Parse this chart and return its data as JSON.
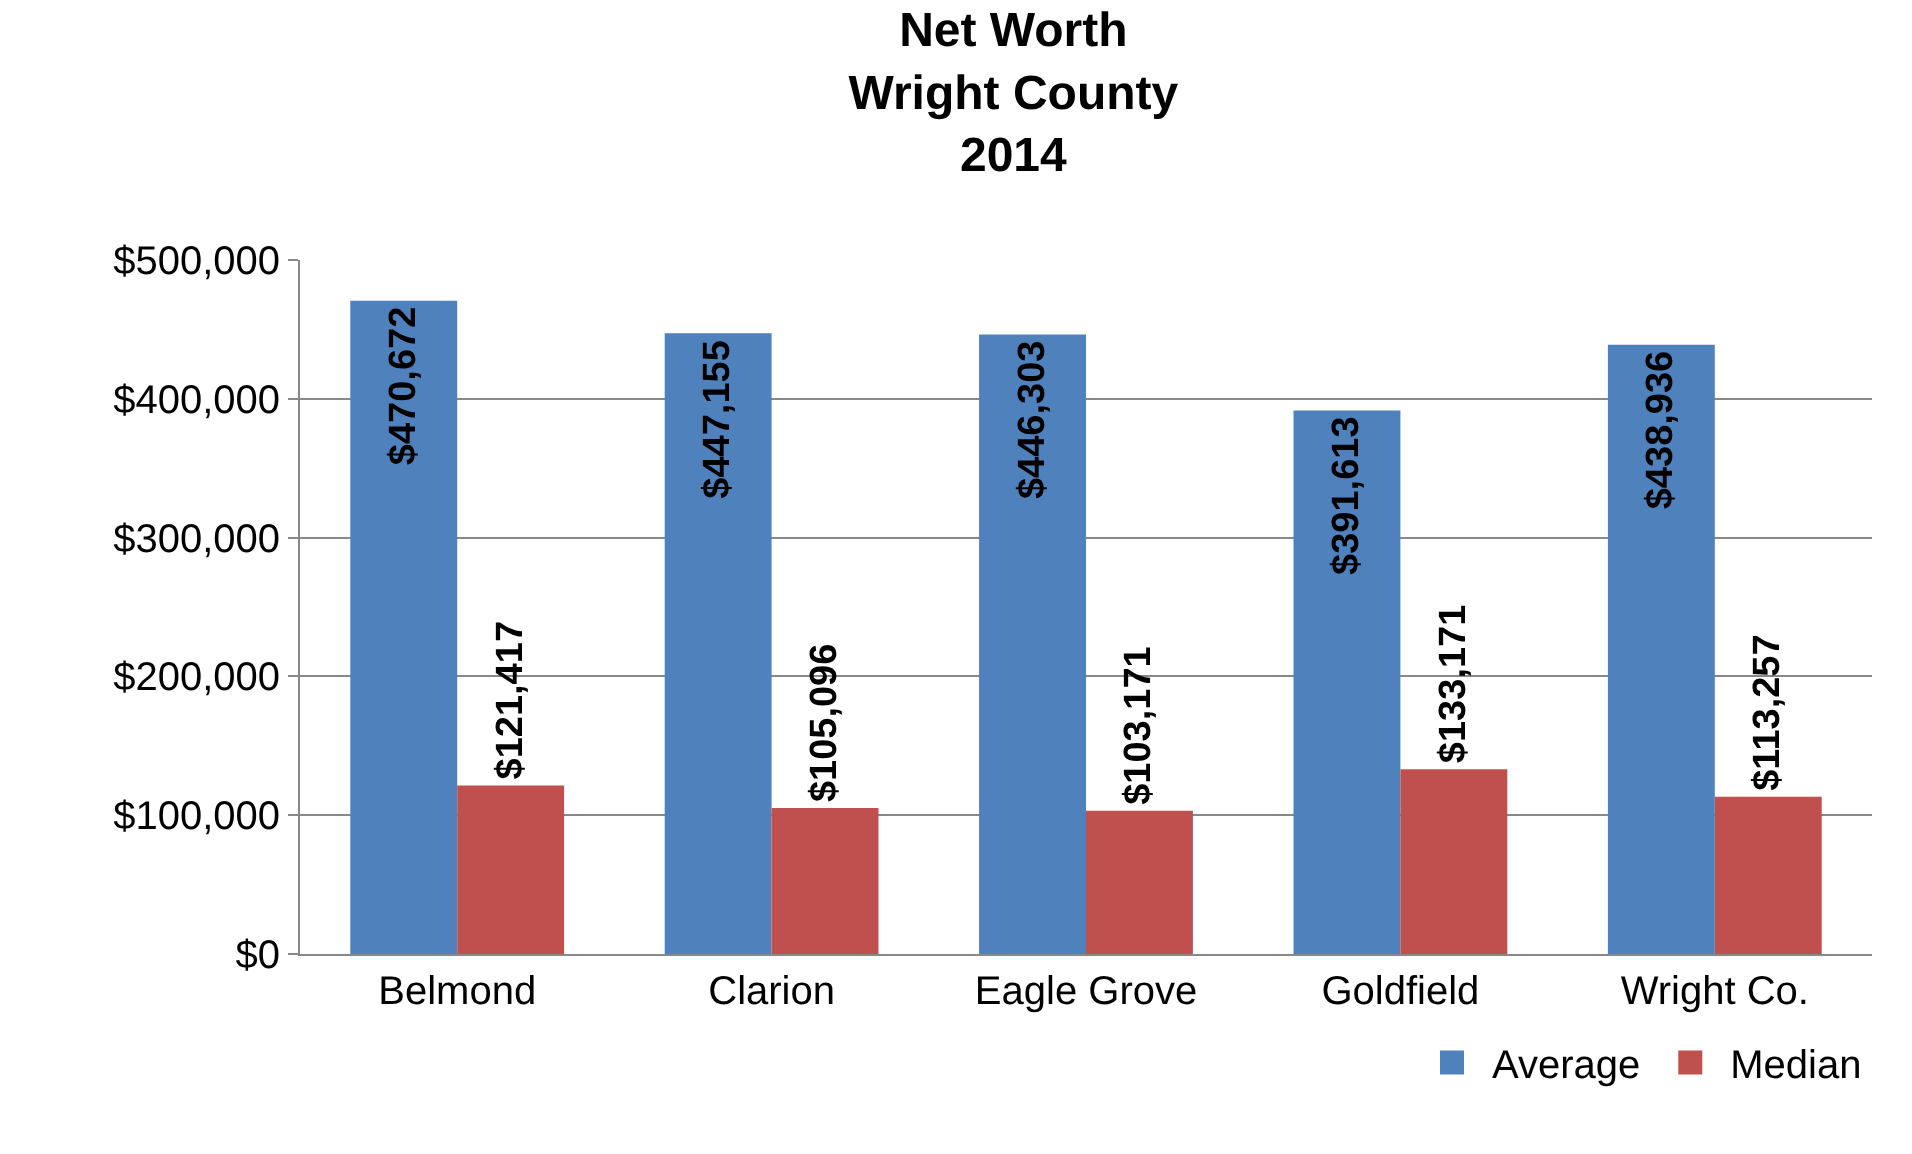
{
  "chart_data": {
    "type": "bar",
    "title": "Net Worth\nWright County\n2014",
    "categories": [
      "Belmond",
      "Clarion",
      "Eagle Grove",
      "Goldfield",
      "Wright Co."
    ],
    "series": [
      {
        "name": "Average",
        "color": "#4f81bd",
        "values": [
          470672,
          447155,
          446303,
          391613,
          438936
        ],
        "value_labels": [
          "$470,672",
          "$447,155",
          "$446,303",
          "$391,613",
          "$438,936"
        ]
      },
      {
        "name": "Median",
        "color": "#c0504d",
        "values": [
          121417,
          105096,
          103171,
          133171,
          113257
        ],
        "value_labels": [
          "$121,417",
          "$105,096",
          "$103,171",
          "$133,171",
          "$113,257"
        ]
      }
    ],
    "ylim": [
      0,
      500000
    ],
    "yticks": [
      {
        "value": 0,
        "label": "$0"
      },
      {
        "value": 100000,
        "label": "$100,000"
      },
      {
        "value": 200000,
        "label": "$200,000"
      },
      {
        "value": 300000,
        "label": "$300,000"
      },
      {
        "value": 400000,
        "label": "$400,000"
      },
      {
        "value": 500000,
        "label": "$500,000"
      }
    ],
    "grid": "y",
    "legend": "bottom right"
  }
}
